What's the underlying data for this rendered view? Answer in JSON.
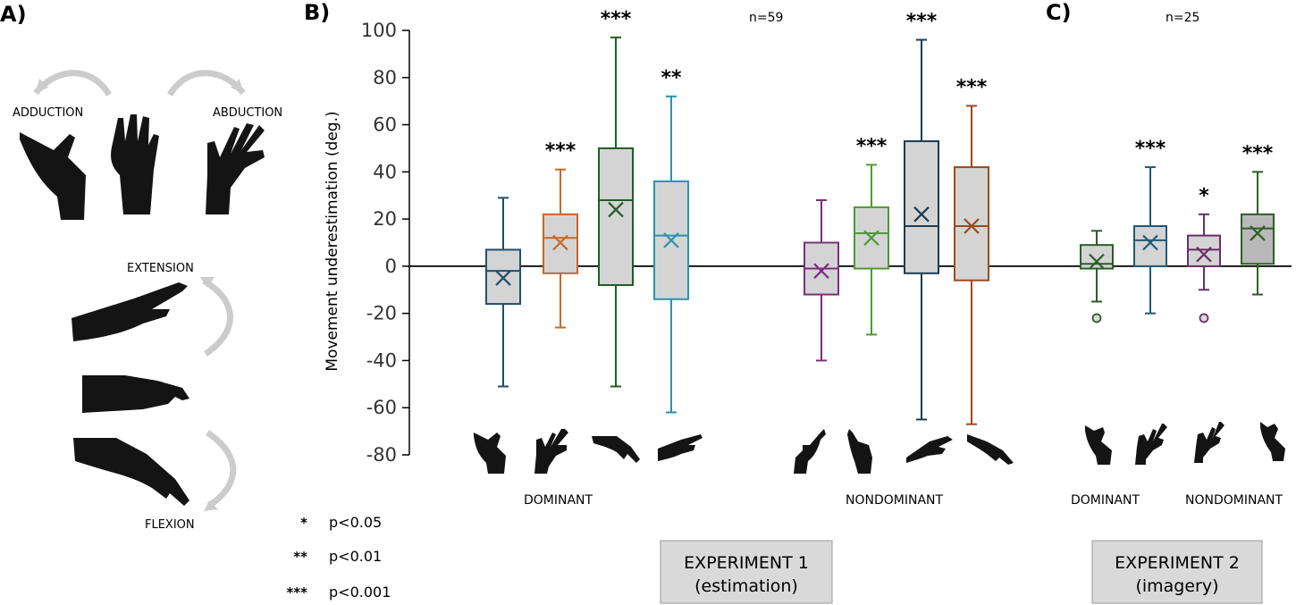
{
  "panels": {
    "a_label": "A)",
    "b_label": "B)",
    "c_label": "C)"
  },
  "movements": {
    "adduction": "ADDUCTION",
    "abduction": "ABDUCTION",
    "extension": "EXTENSION",
    "flexion": "FLEXION"
  },
  "legend": [
    {
      "symbol": "*",
      "text": "p<0.05"
    },
    {
      "symbol": "**",
      "text": "p<0.01"
    },
    {
      "symbol": "***",
      "text": "p<0.001"
    }
  ],
  "experiments": {
    "exp1_line1": "EXPERIMENT 1",
    "exp1_line2": "(estimation)",
    "exp2_line1": "EXPERIMENT 2",
    "exp2_line2": "(imagery)"
  },
  "colors": {
    "box_fill": "#d4d4d4",
    "box_fill_dark": "#b9b9b9",
    "zero_line": "#000000",
    "arrow": "#cccccc",
    "hand": "#141414"
  },
  "chart_data": {
    "type": "box",
    "ylabel": "Movement underestimation (deg.)",
    "ylim": [
      -80,
      100
    ],
    "yticks": [
      100,
      80,
      60,
      40,
      20,
      0,
      -20,
      -40,
      -60,
      -80
    ],
    "zero_line": true,
    "experiment_1": {
      "n_label": "n=59",
      "groups": [
        "DOMINANT",
        "NONDOMINANT"
      ],
      "boxes": [
        {
          "group": "DOMINANT",
          "color": "#1f4e6b",
          "whisker_low": -51,
          "q1": -16,
          "median": -2,
          "q3": 7,
          "whisker_high": 29,
          "mean": -5,
          "sig": ""
        },
        {
          "group": "DOMINANT",
          "color": "#c8662a",
          "whisker_low": -26,
          "q1": -3,
          "median": 12,
          "q3": 22,
          "whisker_high": 41,
          "mean": 10,
          "sig": "***"
        },
        {
          "group": "DOMINANT",
          "color": "#1f5e24",
          "whisker_low": -51,
          "q1": -8,
          "median": 28,
          "q3": 50,
          "whisker_high": 97,
          "mean": 24,
          "sig": "***"
        },
        {
          "group": "DOMINANT",
          "color": "#2a93b0",
          "whisker_low": -62,
          "q1": -14,
          "median": 13,
          "q3": 36,
          "whisker_high": 72,
          "mean": 11,
          "sig": "**"
        },
        {
          "group": "NONDOMINANT",
          "color": "#7a2f7d",
          "whisker_low": -40,
          "q1": -12,
          "median": -1,
          "q3": 10,
          "whisker_high": 28,
          "mean": -2,
          "sig": ""
        },
        {
          "group": "NONDOMINANT",
          "color": "#4f9a32",
          "whisker_low": -29,
          "q1": -1,
          "median": 14,
          "q3": 25,
          "whisker_high": 43,
          "mean": 12,
          "sig": "***"
        },
        {
          "group": "NONDOMINANT",
          "color": "#1c3b52",
          "whisker_low": -65,
          "q1": -3,
          "median": 17,
          "q3": 53,
          "whisker_high": 96,
          "mean": 22,
          "sig": "***"
        },
        {
          "group": "NONDOMINANT",
          "color": "#9c4a1c",
          "whisker_low": -67,
          "q1": -6,
          "median": 17,
          "q3": 42,
          "whisker_high": 68,
          "mean": 17,
          "sig": "***"
        }
      ]
    },
    "experiment_2": {
      "n_label": "n=25",
      "groups": [
        "DOMINANT",
        "NONDOMINANT"
      ],
      "boxes": [
        {
          "group": "DOMINANT",
          "color": "#2c5e2a",
          "whisker_low": -15,
          "q1": -1,
          "median": 1,
          "q3": 9,
          "whisker_high": 15,
          "mean": 2,
          "outliers": [
            -22
          ],
          "sig": ""
        },
        {
          "group": "DOMINANT",
          "color": "#1f5a78",
          "whisker_low": -20,
          "q1": 0,
          "median": 11,
          "q3": 17,
          "whisker_high": 42,
          "mean": 10,
          "outliers": [],
          "sig": "***"
        },
        {
          "group": "NONDOMINANT",
          "color": "#6b2d6b",
          "whisker_low": -10,
          "q1": 0,
          "median": 7,
          "q3": 13,
          "whisker_high": 22,
          "mean": 5,
          "outliers": [
            -22
          ],
          "sig": "*"
        },
        {
          "group": "NONDOMINANT",
          "color": "#2f5e26",
          "whisker_low": -12,
          "q1": 1,
          "median": 16,
          "q3": 22,
          "whisker_high": 40,
          "mean": 14,
          "outliers": [],
          "sig": "***"
        }
      ]
    }
  }
}
